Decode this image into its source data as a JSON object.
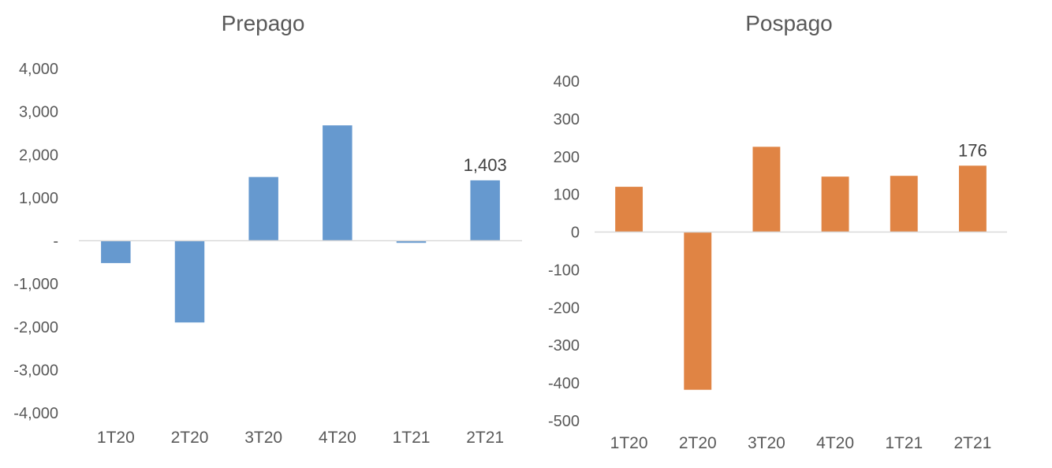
{
  "chart_data": [
    {
      "type": "bar",
      "title": "Prepago",
      "categories": [
        "1T20",
        "2T20",
        "3T20",
        "4T20",
        "1T21",
        "2T21"
      ],
      "values": [
        -520,
        -1900,
        1480,
        2680,
        -50,
        1403
      ],
      "ylim": [
        -4000,
        4000
      ],
      "yticks": [
        "4,000",
        "3,000",
        "2,000",
        "1,000",
        "-",
        "-1,000",
        "-2,000",
        "-3,000",
        "-4,000"
      ],
      "data_labels": [
        {
          "index": 5,
          "text": "1,403"
        }
      ],
      "color": "#6699CF",
      "grid": false
    },
    {
      "type": "bar",
      "title": "Pospago",
      "categories": [
        "1T20",
        "2T20",
        "3T20",
        "4T20",
        "1T21",
        "2T21"
      ],
      "values": [
        120,
        -418,
        226,
        147,
        149,
        176
      ],
      "ylim": [
        -500,
        400
      ],
      "yticks": [
        "400",
        "300",
        "200",
        "100",
        "0",
        "-100",
        "-200",
        "-300",
        "-400",
        "-500"
      ],
      "data_labels": [
        {
          "index": 5,
          "text": "176"
        }
      ],
      "color": "#E08444",
      "grid": false
    }
  ]
}
